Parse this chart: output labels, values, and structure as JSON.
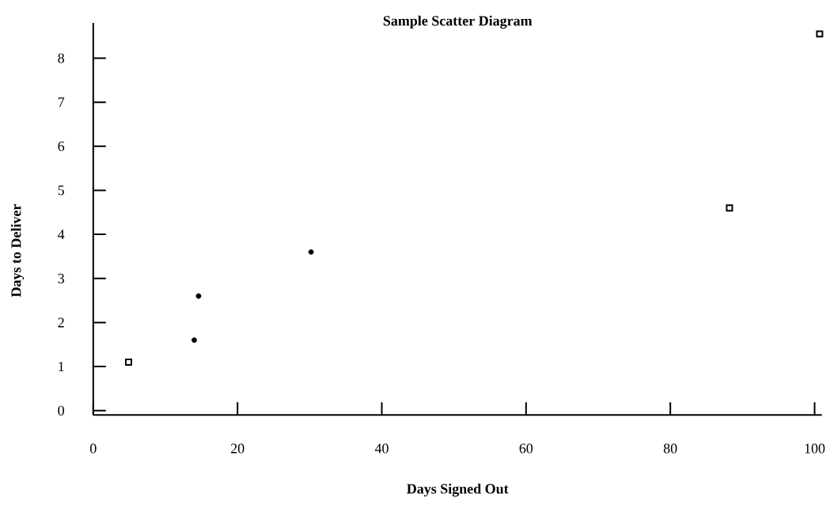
{
  "chart_data": {
    "type": "scatter",
    "title": "Sample Scatter Diagram",
    "xlabel": "Days Signed Out",
    "ylabel": "Days to Deliver",
    "xlim": [
      0,
      101
    ],
    "ylim": [
      -0.1,
      8.8
    ],
    "xticks": [
      0,
      20,
      40,
      60,
      80,
      100
    ],
    "yticks": [
      0,
      1,
      2,
      3,
      4,
      5,
      6,
      7,
      8
    ],
    "grid": false,
    "series": [
      {
        "color": "#000000",
        "marker": "square",
        "x": [
          4.9,
          88.2,
          100.7
        ],
        "values": [
          1.1,
          4.6,
          8.55
        ]
      },
      {
        "color": "#000000",
        "marker": "circle",
        "x": [
          14.0,
          14.6,
          30.2
        ],
        "values": [
          1.6,
          2.6,
          3.6
        ]
      }
    ]
  }
}
